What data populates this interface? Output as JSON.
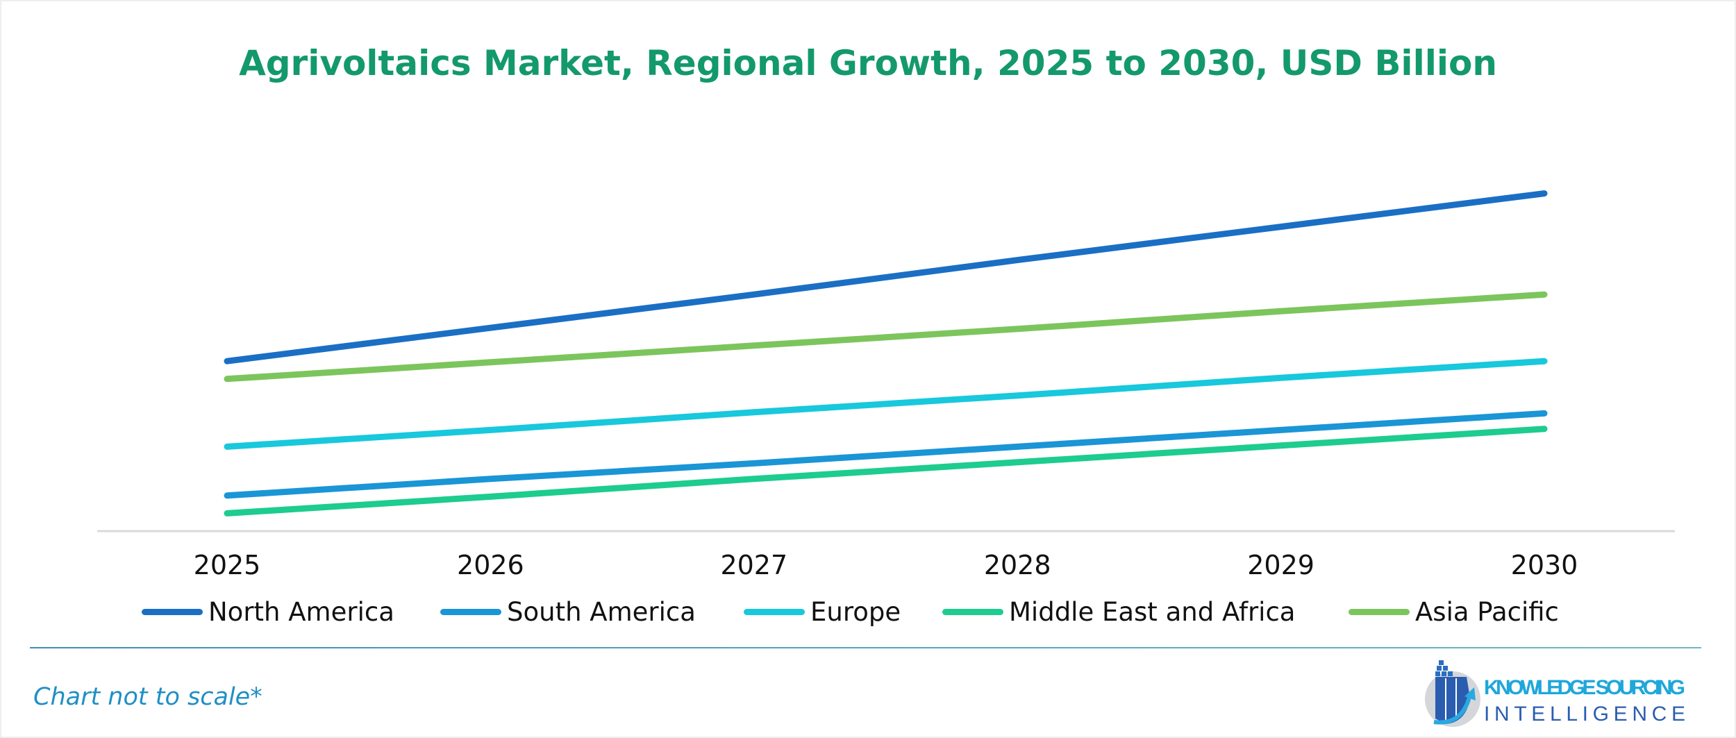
{
  "chart_data": {
    "type": "line",
    "title": "Agrivoltaics Market, Regional Growth, 2025 to 2030, USD Billion",
    "xlabel": "",
    "ylabel": "",
    "categories": [
      "2025",
      "2026",
      "2027",
      "2028",
      "2029",
      "2030"
    ],
    "y_axis_shown": false,
    "grid": false,
    "legend_placement": "bottom",
    "series": [
      {
        "name": "North America",
        "color": "#1a6fc4",
        "values": [
          15.3,
          18.3,
          21.3,
          24.4,
          27.4,
          30.4
        ]
      },
      {
        "name": "South America",
        "color": "#1a95d6",
        "values": [
          3.2,
          4.7,
          6.1,
          7.6,
          9.1,
          10.6
        ]
      },
      {
        "name": "Europe",
        "color": "#18c8dc",
        "values": [
          7.6,
          9.1,
          10.7,
          12.2,
          13.8,
          15.3
        ]
      },
      {
        "name": "Middle East and Africa",
        "color": "#1dcc8f",
        "values": [
          1.6,
          3.1,
          4.7,
          6.2,
          7.7,
          9.2
        ]
      },
      {
        "name": "Asia Pacific",
        "color": "#7cc55c",
        "values": [
          13.7,
          15.2,
          16.7,
          18.2,
          19.8,
          21.3
        ]
      }
    ]
  },
  "footer": {
    "note": "Chart not to scale*",
    "logo_line1": "KNOWLEDGE SOURCING",
    "logo_line2": "INTELLIGENCE"
  }
}
